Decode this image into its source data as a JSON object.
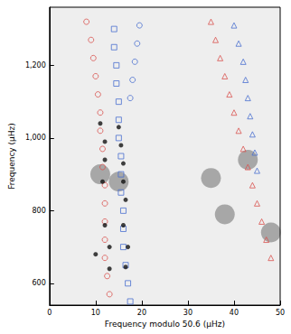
{
  "chart_data": {
    "type": "scatter",
    "x_label": "Frequency modulo 50.6 (μHz)",
    "y_label": "Frequency (μHz)",
    "xlim": [
      0,
      50
    ],
    "xticks": [
      0,
      10,
      20,
      30,
      40,
      50
    ],
    "ylim": [
      540,
      1360
    ],
    "yticks": [
      600,
      800,
      1000,
      1200
    ],
    "grid": false,
    "series": [
      {
        "color": "#ffffff",
        "marker": "blob",
        "values": [
          [
            35,
            890
          ],
          [
            43,
            940
          ],
          [
            38,
            790
          ],
          [
            48,
            740
          ],
          [
            11,
            900
          ],
          [
            15,
            880
          ]
        ]
      },
      {
        "color": "#d9534f",
        "marker": "open_circle",
        "values": [
          [
            8,
            1320
          ],
          [
            9,
            1270
          ],
          [
            9.5,
            1220
          ],
          [
            10,
            1170
          ],
          [
            10.5,
            1120
          ],
          [
            11,
            1070
          ],
          [
            11,
            1020
          ],
          [
            11.5,
            970
          ],
          [
            11.5,
            920
          ],
          [
            12,
            870
          ],
          [
            12,
            820
          ],
          [
            12,
            770
          ],
          [
            12,
            720
          ],
          [
            12,
            670
          ],
          [
            12.5,
            620
          ],
          [
            13,
            570
          ]
        ]
      },
      {
        "color": "#4a6fd0",
        "marker": "open_square",
        "values": [
          [
            14,
            1300
          ],
          [
            14,
            1250
          ],
          [
            14.5,
            1200
          ],
          [
            14.5,
            1150
          ],
          [
            15,
            1100
          ],
          [
            15,
            1050
          ],
          [
            15,
            1000
          ],
          [
            15.5,
            950
          ],
          [
            15.5,
            900
          ],
          [
            15.5,
            850
          ],
          [
            16,
            800
          ],
          [
            16,
            750
          ],
          [
            16,
            700
          ],
          [
            16.5,
            650
          ],
          [
            17,
            600
          ],
          [
            17.5,
            550
          ]
        ]
      },
      {
        "color": "#4a6fd0",
        "marker": "open_circle",
        "values": [
          [
            19.5,
            1310
          ],
          [
            19,
            1260
          ],
          [
            18.5,
            1210
          ],
          [
            18,
            1160
          ],
          [
            17.5,
            1110
          ]
        ]
      },
      {
        "color": "#111111",
        "marker": "filled_circle",
        "values": [
          [
            11,
            1040
          ],
          [
            12,
            990
          ],
          [
            12,
            940
          ],
          [
            11.5,
            880
          ],
          [
            15,
            1030
          ],
          [
            15.5,
            980
          ],
          [
            16,
            930
          ],
          [
            16,
            880
          ],
          [
            16.5,
            830
          ],
          [
            13,
            700
          ],
          [
            17,
            700
          ],
          [
            13,
            640
          ],
          [
            16.5,
            645
          ],
          [
            12,
            760
          ],
          [
            16,
            760
          ],
          [
            10,
            680
          ]
        ]
      },
      {
        "color": "#d9534f",
        "marker": "open_triangle",
        "values": [
          [
            35,
            1320
          ],
          [
            36,
            1270
          ],
          [
            37,
            1220
          ],
          [
            38,
            1170
          ],
          [
            39,
            1120
          ],
          [
            40,
            1070
          ],
          [
            41,
            1020
          ],
          [
            42,
            970
          ],
          [
            43,
            920
          ],
          [
            44,
            870
          ],
          [
            45,
            820
          ],
          [
            46,
            770
          ],
          [
            47,
            720
          ],
          [
            48,
            670
          ]
        ]
      },
      {
        "color": "#4a6fd0",
        "marker": "open_triangle",
        "values": [
          [
            40,
            1310
          ],
          [
            41,
            1260
          ],
          [
            42,
            1210
          ],
          [
            42.5,
            1160
          ],
          [
            43,
            1110
          ],
          [
            43.5,
            1060
          ],
          [
            44,
            1010
          ],
          [
            44.5,
            960
          ],
          [
            45,
            910
          ]
        ]
      }
    ]
  }
}
